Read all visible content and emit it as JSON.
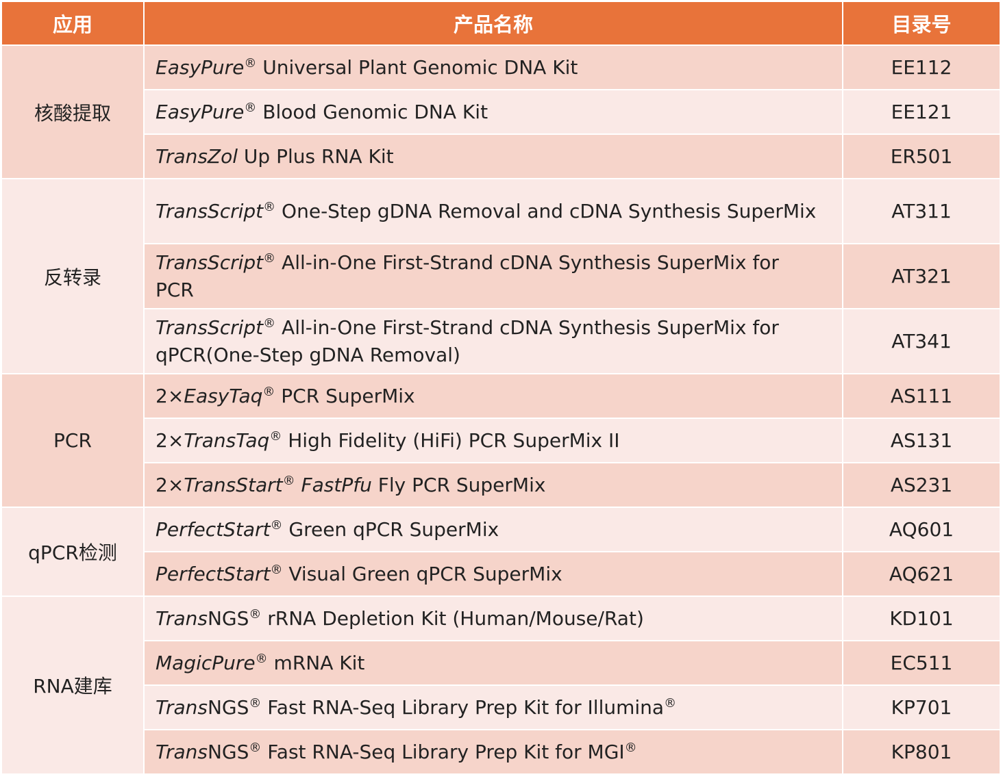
{
  "header": [
    "应用",
    "产品名称",
    "目录号"
  ],
  "groups": [
    {
      "application": "核酸提取",
      "products": [
        {
          "name": [
            {
              "text": "EasyPure",
              "italic": true
            },
            {
              "text": "®",
              "sup": true
            },
            {
              "text": " Universal Plant Genomic DNA Kit"
            }
          ],
          "catalog": "EE112"
        },
        {
          "name": [
            {
              "text": "EasyPure",
              "italic": true
            },
            {
              "text": "®",
              "sup": true
            },
            {
              "text": " Blood Genomic DNA Kit"
            }
          ],
          "catalog": "EE121"
        },
        {
          "name": [
            {
              "text": "TransZol",
              "italic": true
            },
            {
              "text": " Up Plus RNA Kit"
            }
          ],
          "catalog": "ER501"
        }
      ]
    },
    {
      "application": "反转录",
      "products": [
        {
          "name": [
            {
              "text": "TransScript",
              "italic": true
            },
            {
              "text": "®",
              "sup": true
            },
            {
              "text": " One-Step gDNA Removal and cDNA Synthesis SuperMix"
            }
          ],
          "catalog": "AT311"
        },
        {
          "name": [
            {
              "text": "TransScript",
              "italic": true
            },
            {
              "text": "®",
              "sup": true
            },
            {
              "text": " All-in-One First-Strand cDNA Synthesis SuperMix for PCR"
            }
          ],
          "catalog": "AT321"
        },
        {
          "name": [
            {
              "text": "TransScript",
              "italic": true
            },
            {
              "text": "®",
              "sup": true
            },
            {
              "text": " All-in-One First-Strand cDNA Synthesis SuperMix for qPCR(One-Step gDNA Removal)"
            }
          ],
          "catalog": "AT341"
        }
      ]
    },
    {
      "application": "PCR",
      "products": [
        {
          "name": [
            {
              "text": "2×"
            },
            {
              "text": "EasyTaq",
              "italic": true
            },
            {
              "text": "®",
              "sup": true
            },
            {
              "text": " PCR SuperMix"
            }
          ],
          "catalog": "AS111"
        },
        {
          "name": [
            {
              "text": "2×"
            },
            {
              "text": "TransTaq",
              "italic": true
            },
            {
              "text": "®",
              "sup": true
            },
            {
              "text": " High Fidelity (HiFi) PCR SuperMix II"
            }
          ],
          "catalog": "AS131"
        },
        {
          "name": [
            {
              "text": "2×"
            },
            {
              "text": "TransStart",
              "italic": true
            },
            {
              "text": "®",
              "sup": true
            },
            {
              "text": " FastPfu",
              "italic": true
            },
            {
              "text": " Fly PCR SuperMix"
            }
          ],
          "catalog": "AS231"
        }
      ]
    },
    {
      "application": "qPCR检测",
      "products": [
        {
          "name": [
            {
              "text": "PerfectStart",
              "italic": true
            },
            {
              "text": "®",
              "sup": true
            },
            {
              "text": " Green qPCR SuperMix"
            }
          ],
          "catalog": "AQ601"
        },
        {
          "name": [
            {
              "text": "PerfectStart",
              "italic": true
            },
            {
              "text": "®",
              "sup": true
            },
            {
              "text": " Visual Green qPCR SuperMix"
            }
          ],
          "catalog": "AQ621"
        }
      ]
    },
    {
      "application": "RNA建库",
      "products": [
        {
          "name": [
            {
              "text": "Trans",
              "italic": true
            },
            {
              "text": "NGS"
            },
            {
              "text": "®",
              "sup": true
            },
            {
              "text": " rRNA Depletion Kit (Human/Mouse/Rat)"
            }
          ],
          "catalog": "KD101"
        },
        {
          "name": [
            {
              "text": "MagicPure",
              "italic": true
            },
            {
              "text": "®",
              "sup": true
            },
            {
              "text": " mRNA Kit"
            }
          ],
          "catalog": "EC511"
        },
        {
          "name": [
            {
              "text": "Trans",
              "italic": true
            },
            {
              "text": "NGS"
            },
            {
              "text": "®",
              "sup": true
            },
            {
              "text": " Fast RNA-Seq Library Prep Kit for Illumina"
            },
            {
              "text": "®",
              "sup": true
            }
          ],
          "catalog": "KP701"
        },
        {
          "name": [
            {
              "text": "Trans",
              "italic": true
            },
            {
              "text": "NGS"
            },
            {
              "text": "®",
              "sup": true
            },
            {
              "text": " Fast RNA-Seq Library Prep Kit for MGI"
            },
            {
              "text": "®",
              "sup": true
            }
          ],
          "catalog": "KP801"
        }
      ]
    }
  ]
}
